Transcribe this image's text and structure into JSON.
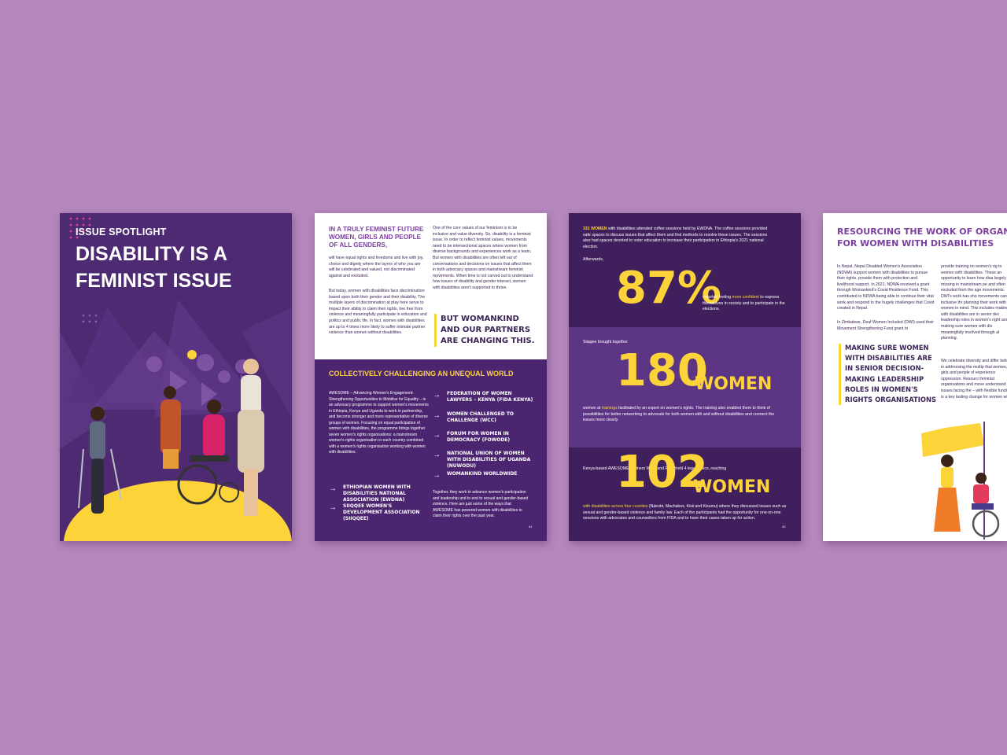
{
  "page1": {
    "kicker": "ISSUE SPOTLIGHT",
    "title_line1": "DISABILITY IS A",
    "title_line2": "FEMINIST ISSUE"
  },
  "page2": {
    "heading_line1": "IN A TRULY FEMINIST FUTURE",
    "heading_line2": "WOMEN, GIRLS AND PEOPLE",
    "heading_line3": "OF ALL GENDERS,",
    "para1": "will have equal rights and freedoms and live with joy, choice and dignity where the layers of who you are will be celebrated and valued, not discriminated against and excluded.",
    "para2": "But today, women with disabilities face discrimination based upon both their gender and their disability. The multiple layers of discrimination at play here serve to impact their ability to claim their rights, live free from violence and meaningfully participate in education and politics and public life. In fact, women with disabilities are up to 4 times more likely to suffer intimate partner violence than women without disabilities.",
    "para3": "One of the core values of our feminism is to be inclusive and value diversity. So, disability is a feminist issue. In order to reflect feminist values, movements need to be intersectional spaces where women from diverse backgrounds and experiences work as a team. But women with disabilities are often left out of conversations and decisions on issues that affect them in both advocacy spaces and mainstream feminist movements. When time is not carved out to understand how issues of disability and gender interact, women with disabilities aren't supported to thrive.",
    "quote_line1": "BUT WOMANKIND",
    "quote_line2": "AND OUR PARTNERS",
    "quote_line3": "ARE CHANGING THIS.",
    "band_title": "COLLECTIVELY CHALLENGING AN UNEQUAL WORLD",
    "awesome_text": "AWESOME – Advancing Women's Engagement: Strengthening Opportunities to Mobilise for Equality – is an advocacy programme to support women's movements in Ethiopia, Kenya and Uganda to work in partnership, and become stronger and more representative of diverse groups of women. Focusing on equal participation of women with disabilities, the programme brings together seven women's rights organisations: a mainstream women's rights organisation in each country combined with a women's rights organisation working with women with disabilities.",
    "orgs_left": [
      "ETHIOPIAN WOMEN WITH DISABILITIES NATIONAL ASSOCIATION (EWDNA)",
      "SIIQQEE WOMEN'S DEVELOPMENT ASSOCIATION (SIIQQEE)"
    ],
    "orgs_right": [
      "FEDERATION OF WOMEN LAWYERS – KENYA (FIDA KENYA)",
      "WOMEN CHALLENGED TO CHALLENGE (WCC)",
      "FORUM FOR WOMEN IN DEMOCRACY (FOWODE)",
      "NATIONAL UNION OF WOMEN WITH DISABILITIES OF UGANDA (NUWODU)",
      "WOMANKIND WORLDWIDE"
    ],
    "closing_text": "Together, they work to advance women's participation and leadership and to end to sexual and gender-based violence. Here are just some of the ways that AWESOME has powered women with disabilities to claim their rights over the past year.",
    "page_number": "41"
  },
  "page3": {
    "intro_highlight": "331 WOMEN",
    "intro_text": "with disabilities attended coffee sessions held by EWDNA. The coffee sessions provided safe spaces to discuss issues that affect them and find methods to resolve these issues. The sessions also had spaces devoted to voter education to increase their participation in Ethiopia's 2021 national election.",
    "afterwards": "Afterwards,",
    "stat1": "87%",
    "stat1_pre": "reported feeling",
    "stat1_highlight": "more confident",
    "stat1_post": "to express themselves in society and to participate in the elections.",
    "stat2_lead": "Siiqqee brought together",
    "stat2": "180",
    "stat2_unit": "WOMEN",
    "stat2_pre": "women at",
    "stat2_highlight": "trainings",
    "stat2_post": "facilitated by an expert on women's rights. The training also enabled them to think of possibilities for better networking to advocate for both women with and without disabilities and connect the issues more clearly.",
    "stat3_lead": "Kenya-based AWESOME partners WCC and FIDA held 4 legal clinics, reaching",
    "stat3": "102",
    "stat3_unit": "WOMEN",
    "stat3_highlight": "with disabilities across four counties",
    "stat3_post": "(Nairobi, Machakos, Kisii and Kisumu) where they discussed issues such as sexual and gender-based violence and family law. Each of the participants had the opportunity for one-on-one sessions with advocates and counsellors from FIDA and to have their cases taken up for action.",
    "page_number": "42"
  },
  "page4": {
    "title_line1": "RESOURCING THE WORK OF ORGANIS",
    "title_line2": "FOR WOMEN WITH DISABILITIES",
    "col1_p1": "In Nepal, Nepal Disabled Women's Association (NDWA) support women with disabilities to pursue their rights, provide them with protection and livelihood support. In 2021, NDWA received a grant through Womankind's Covid Resilience Fund. This contributed to NDWA being able to continue their vital work and respond to the hugely challenges that Covid created in Nepal.",
    "col1_p2": "In Zimbabwe, Deaf Women Included (DWI) used their Movement Strengthening Fund grant to",
    "col2_p1": "provide training on women's rig to women with disabilities. These an opportunity to learn how disa largely missing in mainstream pe and often excluded from the age movements. DWI's work has sho movements can be inclusive thr planning their work with women in mind. This includes making su with disabilities are in senior dec leadership roles in women's right and making sure women with dis meaningfully involved through al planning.",
    "col2_p2": "We celebrate diversity and differ believe in addressing the multip that women, girls and people of experience oppression. Resourci feminist organisations and move understand the issues facing the – with flexible funding – is a key lasting change for women with d",
    "quote_line1": "MAKING SURE WOMEN",
    "quote_line2": "WITH DISABILITIES ARE",
    "quote_line3": "IN SENIOR DECISION-",
    "quote_line4": "MAKING LEADERSHIP",
    "quote_line5": "ROLES IN WOMEN'S",
    "quote_line6": "RIGHTS ORGANISATIONS"
  },
  "colors": {
    "background": "#b588bd",
    "purple_dark": "#3f1f5c",
    "purple_mid": "#5c3585",
    "accent_yellow": "#fdd33a",
    "heading_purple": "#7b3fa0"
  }
}
